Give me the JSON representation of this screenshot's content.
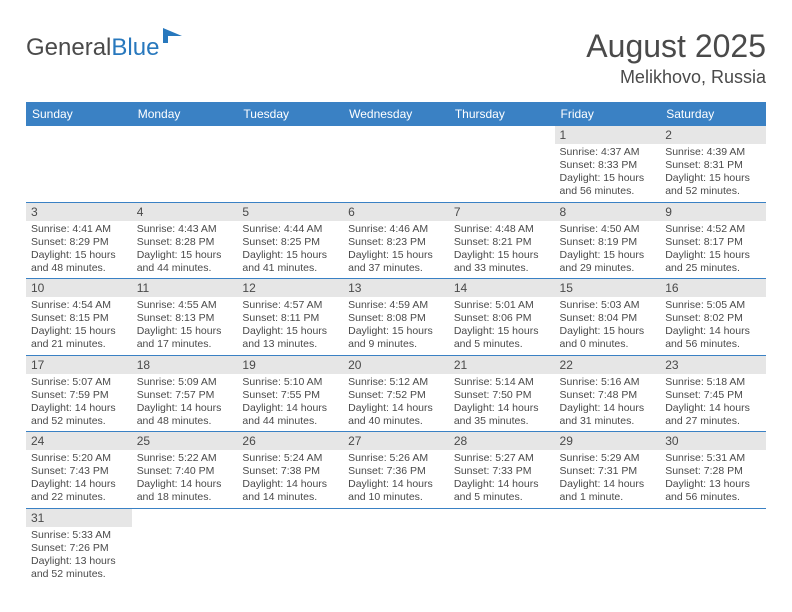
{
  "logo": {
    "word1": "General",
    "word2": "Blue"
  },
  "title": "August 2025",
  "location": "Melikhovo, Russia",
  "colors": {
    "header_bg": "#3a81c4",
    "header_text": "#ffffff",
    "daynum_bg": "#e6e6e6",
    "rule": "#3a81c4",
    "text": "#4a4a4a",
    "logo_blue": "#2878bd",
    "page_bg": "#ffffff"
  },
  "day_headers": [
    "Sunday",
    "Monday",
    "Tuesday",
    "Wednesday",
    "Thursday",
    "Friday",
    "Saturday"
  ],
  "weeks": [
    [
      null,
      null,
      null,
      null,
      null,
      {
        "n": "1",
        "sr": "Sunrise: 4:37 AM",
        "ss": "Sunset: 8:33 PM",
        "dl": "Daylight: 15 hours and 56 minutes."
      },
      {
        "n": "2",
        "sr": "Sunrise: 4:39 AM",
        "ss": "Sunset: 8:31 PM",
        "dl": "Daylight: 15 hours and 52 minutes."
      }
    ],
    [
      {
        "n": "3",
        "sr": "Sunrise: 4:41 AM",
        "ss": "Sunset: 8:29 PM",
        "dl": "Daylight: 15 hours and 48 minutes."
      },
      {
        "n": "4",
        "sr": "Sunrise: 4:43 AM",
        "ss": "Sunset: 8:28 PM",
        "dl": "Daylight: 15 hours and 44 minutes."
      },
      {
        "n": "5",
        "sr": "Sunrise: 4:44 AM",
        "ss": "Sunset: 8:25 PM",
        "dl": "Daylight: 15 hours and 41 minutes."
      },
      {
        "n": "6",
        "sr": "Sunrise: 4:46 AM",
        "ss": "Sunset: 8:23 PM",
        "dl": "Daylight: 15 hours and 37 minutes."
      },
      {
        "n": "7",
        "sr": "Sunrise: 4:48 AM",
        "ss": "Sunset: 8:21 PM",
        "dl": "Daylight: 15 hours and 33 minutes."
      },
      {
        "n": "8",
        "sr": "Sunrise: 4:50 AM",
        "ss": "Sunset: 8:19 PM",
        "dl": "Daylight: 15 hours and 29 minutes."
      },
      {
        "n": "9",
        "sr": "Sunrise: 4:52 AM",
        "ss": "Sunset: 8:17 PM",
        "dl": "Daylight: 15 hours and 25 minutes."
      }
    ],
    [
      {
        "n": "10",
        "sr": "Sunrise: 4:54 AM",
        "ss": "Sunset: 8:15 PM",
        "dl": "Daylight: 15 hours and 21 minutes."
      },
      {
        "n": "11",
        "sr": "Sunrise: 4:55 AM",
        "ss": "Sunset: 8:13 PM",
        "dl": "Daylight: 15 hours and 17 minutes."
      },
      {
        "n": "12",
        "sr": "Sunrise: 4:57 AM",
        "ss": "Sunset: 8:11 PM",
        "dl": "Daylight: 15 hours and 13 minutes."
      },
      {
        "n": "13",
        "sr": "Sunrise: 4:59 AM",
        "ss": "Sunset: 8:08 PM",
        "dl": "Daylight: 15 hours and 9 minutes."
      },
      {
        "n": "14",
        "sr": "Sunrise: 5:01 AM",
        "ss": "Sunset: 8:06 PM",
        "dl": "Daylight: 15 hours and 5 minutes."
      },
      {
        "n": "15",
        "sr": "Sunrise: 5:03 AM",
        "ss": "Sunset: 8:04 PM",
        "dl": "Daylight: 15 hours and 0 minutes."
      },
      {
        "n": "16",
        "sr": "Sunrise: 5:05 AM",
        "ss": "Sunset: 8:02 PM",
        "dl": "Daylight: 14 hours and 56 minutes."
      }
    ],
    [
      {
        "n": "17",
        "sr": "Sunrise: 5:07 AM",
        "ss": "Sunset: 7:59 PM",
        "dl": "Daylight: 14 hours and 52 minutes."
      },
      {
        "n": "18",
        "sr": "Sunrise: 5:09 AM",
        "ss": "Sunset: 7:57 PM",
        "dl": "Daylight: 14 hours and 48 minutes."
      },
      {
        "n": "19",
        "sr": "Sunrise: 5:10 AM",
        "ss": "Sunset: 7:55 PM",
        "dl": "Daylight: 14 hours and 44 minutes."
      },
      {
        "n": "20",
        "sr": "Sunrise: 5:12 AM",
        "ss": "Sunset: 7:52 PM",
        "dl": "Daylight: 14 hours and 40 minutes."
      },
      {
        "n": "21",
        "sr": "Sunrise: 5:14 AM",
        "ss": "Sunset: 7:50 PM",
        "dl": "Daylight: 14 hours and 35 minutes."
      },
      {
        "n": "22",
        "sr": "Sunrise: 5:16 AM",
        "ss": "Sunset: 7:48 PM",
        "dl": "Daylight: 14 hours and 31 minutes."
      },
      {
        "n": "23",
        "sr": "Sunrise: 5:18 AM",
        "ss": "Sunset: 7:45 PM",
        "dl": "Daylight: 14 hours and 27 minutes."
      }
    ],
    [
      {
        "n": "24",
        "sr": "Sunrise: 5:20 AM",
        "ss": "Sunset: 7:43 PM",
        "dl": "Daylight: 14 hours and 22 minutes."
      },
      {
        "n": "25",
        "sr": "Sunrise: 5:22 AM",
        "ss": "Sunset: 7:40 PM",
        "dl": "Daylight: 14 hours and 18 minutes."
      },
      {
        "n": "26",
        "sr": "Sunrise: 5:24 AM",
        "ss": "Sunset: 7:38 PM",
        "dl": "Daylight: 14 hours and 14 minutes."
      },
      {
        "n": "27",
        "sr": "Sunrise: 5:26 AM",
        "ss": "Sunset: 7:36 PM",
        "dl": "Daylight: 14 hours and 10 minutes."
      },
      {
        "n": "28",
        "sr": "Sunrise: 5:27 AM",
        "ss": "Sunset: 7:33 PM",
        "dl": "Daylight: 14 hours and 5 minutes."
      },
      {
        "n": "29",
        "sr": "Sunrise: 5:29 AM",
        "ss": "Sunset: 7:31 PM",
        "dl": "Daylight: 14 hours and 1 minute."
      },
      {
        "n": "30",
        "sr": "Sunrise: 5:31 AM",
        "ss": "Sunset: 7:28 PM",
        "dl": "Daylight: 13 hours and 56 minutes."
      }
    ],
    [
      {
        "n": "31",
        "sr": "Sunrise: 5:33 AM",
        "ss": "Sunset: 7:26 PM",
        "dl": "Daylight: 13 hours and 52 minutes."
      },
      null,
      null,
      null,
      null,
      null,
      null
    ]
  ]
}
